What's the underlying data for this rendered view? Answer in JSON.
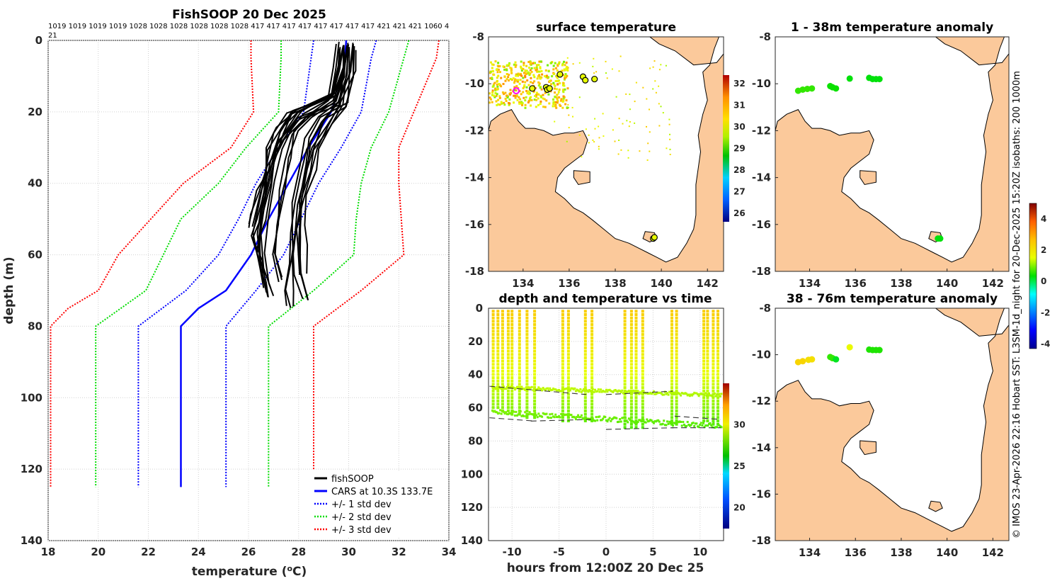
{
  "colors": {
    "fishsoop": "#000000",
    "cars": "#0000ff",
    "sd1": "#0000ff",
    "sd2": "#00dd00",
    "sd3": "#ff0000",
    "land": "#fbc99b",
    "coast": "#000000"
  },
  "chart_data": [
    {
      "type": "line",
      "title": "FishSOOP 20 Dec 2025",
      "xlabel": "temperature (°C)",
      "ylabel": "depth (m)",
      "xlim": [
        18,
        34
      ],
      "ylim": [
        0,
        140
      ],
      "y_reversed": true,
      "xticks": [
        "18",
        "20",
        "22",
        "24",
        "26",
        "28",
        "30",
        "32",
        "34"
      ],
      "yticks": [
        "0",
        "20",
        "40",
        "60",
        "80",
        "100",
        "120",
        "140"
      ],
      "top_numbers_line1": "1019 1019 1019 1019 1028 1028 1028 1028 1028 1028 417 417 417 417 417 417 417 417 421 421 421 1060 4",
      "top_numbers_line2": "21",
      "series": [
        {
          "name": "CARS at 10.3S 133.7E",
          "style": "solid",
          "color": "#0000ff",
          "depth": [
            0,
            10,
            20,
            30,
            40,
            50,
            60,
            70,
            75,
            80,
            125
          ],
          "temp": [
            29.9,
            29.8,
            29.3,
            28.4,
            27.6,
            26.8,
            26.1,
            25.1,
            24.0,
            23.3,
            23.3
          ]
        },
        {
          "name": "+1 std dev",
          "style": "dotted",
          "color": "#0000ff",
          "depth": [
            0,
            5,
            20,
            30,
            40,
            50,
            60,
            70,
            80,
            125
          ],
          "temp": [
            31.1,
            30.9,
            30.5,
            29.7,
            28.8,
            28.1,
            27.4,
            26.3,
            25.1,
            25.1
          ]
        },
        {
          "name": "-1 std dev",
          "style": "dotted",
          "color": "#0000ff",
          "depth": [
            0,
            5,
            20,
            30,
            40,
            50,
            60,
            70,
            80,
            125
          ],
          "temp": [
            28.6,
            28.5,
            28.2,
            27.2,
            26.3,
            25.6,
            24.8,
            23.5,
            21.6,
            21.6
          ]
        },
        {
          "name": "+2 std dev",
          "style": "dotted",
          "color": "#00dd00",
          "depth": [
            0,
            5,
            20,
            30,
            40,
            50,
            60,
            70,
            80,
            125
          ],
          "temp": [
            32.4,
            32.2,
            31.6,
            30.9,
            30.5,
            30.3,
            30.2,
            28.6,
            26.8,
            26.8
          ]
        },
        {
          "name": "-2 std dev",
          "style": "dotted",
          "color": "#00dd00",
          "depth": [
            0,
            5,
            20,
            30,
            40,
            50,
            60,
            70,
            80,
            125
          ],
          "temp": [
            27.3,
            27.3,
            27.2,
            25.9,
            24.8,
            23.3,
            22.6,
            21.9,
            19.9,
            19.9
          ]
        },
        {
          "name": "+3 std dev",
          "style": "dotted",
          "color": "#ff0000",
          "depth": [
            0,
            5,
            20,
            30,
            40,
            50,
            60,
            70,
            80,
            125
          ],
          "temp": [
            33.6,
            33.5,
            32.6,
            32.0,
            32.0,
            32.1,
            32.2,
            30.5,
            28.6,
            28.6
          ]
        },
        {
          "name": "-3 std dev",
          "style": "dotted",
          "color": "#ff0000",
          "depth": [
            0,
            5,
            20,
            30,
            40,
            50,
            60,
            70,
            75,
            80,
            125
          ],
          "temp": [
            26.1,
            26.1,
            26.2,
            25.3,
            23.4,
            22.1,
            20.8,
            20.0,
            18.8,
            18.1,
            18.1
          ]
        }
      ],
      "fishsoop_profiles": [
        {
          "depth": [
            1,
            8,
            15,
            20,
            25,
            30,
            40,
            50,
            60,
            68,
            72
          ],
          "temp": [
            30.0,
            29.9,
            29.6,
            28.3,
            27.7,
            27.4,
            27.0,
            26.8,
            26.6,
            26.8,
            27.0
          ]
        },
        {
          "depth": [
            2,
            8,
            15,
            20,
            25,
            30,
            40,
            50,
            55,
            62,
            66
          ],
          "temp": [
            29.8,
            29.7,
            29.5,
            28.0,
            27.4,
            27.0,
            26.8,
            26.6,
            26.4,
            26.6,
            26.7
          ]
        },
        {
          "depth": [
            1,
            10,
            18,
            22,
            28,
            35,
            45,
            55,
            65,
            72
          ],
          "temp": [
            30.1,
            30.0,
            29.8,
            28.9,
            28.4,
            28.2,
            28.0,
            27.9,
            28.0,
            28.3
          ]
        },
        {
          "depth": [
            2,
            10,
            17,
            21,
            26,
            33,
            42,
            52,
            60,
            67
          ],
          "temp": [
            29.9,
            29.8,
            29.4,
            28.5,
            27.9,
            27.6,
            27.3,
            27.2,
            27.1,
            27.3
          ]
        },
        {
          "depth": [
            3,
            10,
            18,
            22,
            28,
            35,
            42,
            48,
            52
          ],
          "temp": [
            30.0,
            29.9,
            29.6,
            28.2,
            27.5,
            27.0,
            26.5,
            26.3,
            26.2
          ]
        },
        {
          "depth": [
            2,
            9,
            17,
            23,
            30,
            38,
            46,
            54,
            62,
            70,
            75
          ],
          "temp": [
            30.2,
            30.1,
            29.7,
            29.0,
            28.6,
            28.3,
            28.1,
            27.9,
            27.7,
            27.6,
            27.7
          ]
        },
        {
          "depth": [
            1,
            8,
            16,
            20,
            26,
            34,
            44,
            54,
            64,
            70
          ],
          "temp": [
            29.7,
            29.6,
            29.3,
            27.8,
            27.3,
            26.9,
            26.7,
            26.5,
            26.6,
            26.8
          ]
        },
        {
          "depth": [
            2,
            10,
            18,
            24,
            30,
            36,
            44,
            52,
            58,
            66
          ],
          "temp": [
            30.0,
            29.9,
            29.7,
            29.2,
            28.7,
            28.4,
            28.2,
            28.1,
            28.0,
            28.1
          ]
        }
      ],
      "legend": [
        "fishSOOP",
        "CARS at 10.3S 133.7E",
        "+/- 1 std dev",
        "+/- 2 std dev",
        "+/- 3 std dev"
      ],
      "legend_position": "bottom-right"
    },
    {
      "type": "heatmap",
      "title": "surface temperature",
      "xlim": [
        132.5,
        142.7
      ],
      "ylim": [
        -18,
        -8
      ],
      "xticks": [
        "134",
        "136",
        "138",
        "140",
        "142"
      ],
      "yticks": [
        "-8",
        "-10",
        "-12",
        "-14",
        "-16",
        "-18"
      ],
      "colorbar": {
        "range": [
          25.6,
          32.4
        ],
        "ticks": [
          "26",
          "27",
          "28",
          "29",
          "30",
          "31",
          "32"
        ]
      },
      "observation_points": [
        {
          "lon": 135.6,
          "lat": -9.6
        },
        {
          "lon": 136.6,
          "lat": -9.7
        },
        {
          "lon": 136.7,
          "lat": -9.85
        },
        {
          "lon": 137.1,
          "lat": -9.8
        },
        {
          "lon": 134.4,
          "lat": -10.2
        },
        {
          "lon": 135.0,
          "lat": -10.15
        },
        {
          "lon": 135.05,
          "lat": -10.25
        },
        {
          "lon": 135.15,
          "lat": -10.2
        },
        {
          "lon": 139.65,
          "lat": -16.6
        },
        {
          "lon": 139.7,
          "lat": -16.55
        }
      ],
      "highlight_point": {
        "lon": 133.7,
        "lat": -10.3
      }
    },
    {
      "type": "scatter",
      "title": "1 - 38m temperature anomaly",
      "xlim": [
        132.5,
        142.7
      ],
      "ylim": [
        -18,
        -8
      ],
      "xticks": [
        "134",
        "136",
        "138",
        "140",
        "142"
      ],
      "yticks": [
        "-8",
        "-10",
        "-12",
        "-14",
        "-16",
        "-18"
      ],
      "points": [
        {
          "lon": 133.5,
          "lat": -10.3,
          "anom": 0.6
        },
        {
          "lon": 133.7,
          "lat": -10.25,
          "anom": 0.6
        },
        {
          "lon": 133.9,
          "lat": -10.22,
          "anom": 0.6
        },
        {
          "lon": 134.1,
          "lat": -10.2,
          "anom": 0.6
        },
        {
          "lon": 134.9,
          "lat": -10.1,
          "anom": 0.4
        },
        {
          "lon": 135.0,
          "lat": -10.15,
          "anom": 0.4
        },
        {
          "lon": 135.15,
          "lat": -10.2,
          "anom": 0.4
        },
        {
          "lon": 135.75,
          "lat": -9.78,
          "anom": 0.3
        },
        {
          "lon": 136.6,
          "lat": -9.75,
          "anom": 0.3
        },
        {
          "lon": 136.75,
          "lat": -9.8,
          "anom": 0.3
        },
        {
          "lon": 136.9,
          "lat": -9.8,
          "anom": 0.3
        },
        {
          "lon": 137.05,
          "lat": -9.8,
          "anom": 0.3
        },
        {
          "lon": 139.6,
          "lat": -16.6,
          "anom": 0.3
        },
        {
          "lon": 139.7,
          "lat": -16.6,
          "anom": 0.3
        }
      ]
    },
    {
      "type": "scatter",
      "title": "38 - 76m temperature anomaly",
      "xlim": [
        132.5,
        142.7
      ],
      "ylim": [
        -18,
        -8
      ],
      "xticks": [
        "134",
        "136",
        "138",
        "140",
        "142"
      ],
      "yticks": [
        "-8",
        "-10",
        "-12",
        "-14",
        "-16",
        "-18"
      ],
      "points": [
        {
          "lon": 133.5,
          "lat": -10.32,
          "anom": 2.3
        },
        {
          "lon": 133.7,
          "lat": -10.28,
          "anom": 2.3
        },
        {
          "lon": 133.95,
          "lat": -10.22,
          "anom": 2.1
        },
        {
          "lon": 134.1,
          "lat": -10.2,
          "anom": 2.1
        },
        {
          "lon": 134.9,
          "lat": -10.1,
          "anom": 0.6
        },
        {
          "lon": 135.0,
          "lat": -10.15,
          "anom": 0.6
        },
        {
          "lon": 135.15,
          "lat": -10.2,
          "anom": 0.2
        },
        {
          "lon": 135.75,
          "lat": -9.68,
          "anom": 1.6
        },
        {
          "lon": 136.6,
          "lat": -9.78,
          "anom": 0.5
        },
        {
          "lon": 136.75,
          "lat": -9.8,
          "anom": 0.5
        },
        {
          "lon": 136.9,
          "lat": -9.8,
          "anom": 0.5
        },
        {
          "lon": 137.05,
          "lat": -9.8,
          "anom": 0.5
        }
      ],
      "colorbar": {
        "range": [
          -4.3,
          5.0
        ],
        "ticks": [
          "-4",
          "-2",
          "0",
          "2",
          "4"
        ]
      }
    },
    {
      "type": "scatter",
      "title": "depth and temperature vs time",
      "xlabel": "hours from 12:00Z 20 Dec 25",
      "xlim": [
        -12.5,
        12.5
      ],
      "ylim": [
        0,
        140
      ],
      "y_reversed": true,
      "xticks": [
        "-10",
        "-5",
        "0",
        "5",
        "10"
      ],
      "yticks": [
        "0",
        "20",
        "40",
        "60",
        "80",
        "100",
        "120",
        "140"
      ],
      "colorbar": {
        "range": [
          17.5,
          35.0
        ],
        "ticks": [
          "20",
          "25",
          "30"
        ]
      },
      "dashed_lines": [
        {
          "x": [
            -12.4,
            -2.1
          ],
          "y": [
            47,
            52
          ]
        },
        {
          "x": [
            0,
            7.1
          ],
          "y": [
            52,
            50
          ]
        },
        {
          "x": [
            -12.4,
            -7.5
          ],
          "y": [
            66,
            68
          ]
        },
        {
          "x": [
            -8.0,
            -1.6
          ],
          "y": [
            68,
            67
          ]
        },
        {
          "x": [
            7.3,
            12.2
          ],
          "y": [
            65,
            67
          ]
        },
        {
          "x": [
            0,
            7.2
          ],
          "y": [
            73,
            72
          ]
        },
        {
          "x": [
            7.0,
            12.2
          ],
          "y": [
            72,
            72
          ]
        }
      ]
    }
  ],
  "side_text": "© IMOS 23-Apr-2026 22:16 Hobart SST: L3SM-1d_night for 20-Dec-2025 15:20Z isobaths: 200  1000m"
}
